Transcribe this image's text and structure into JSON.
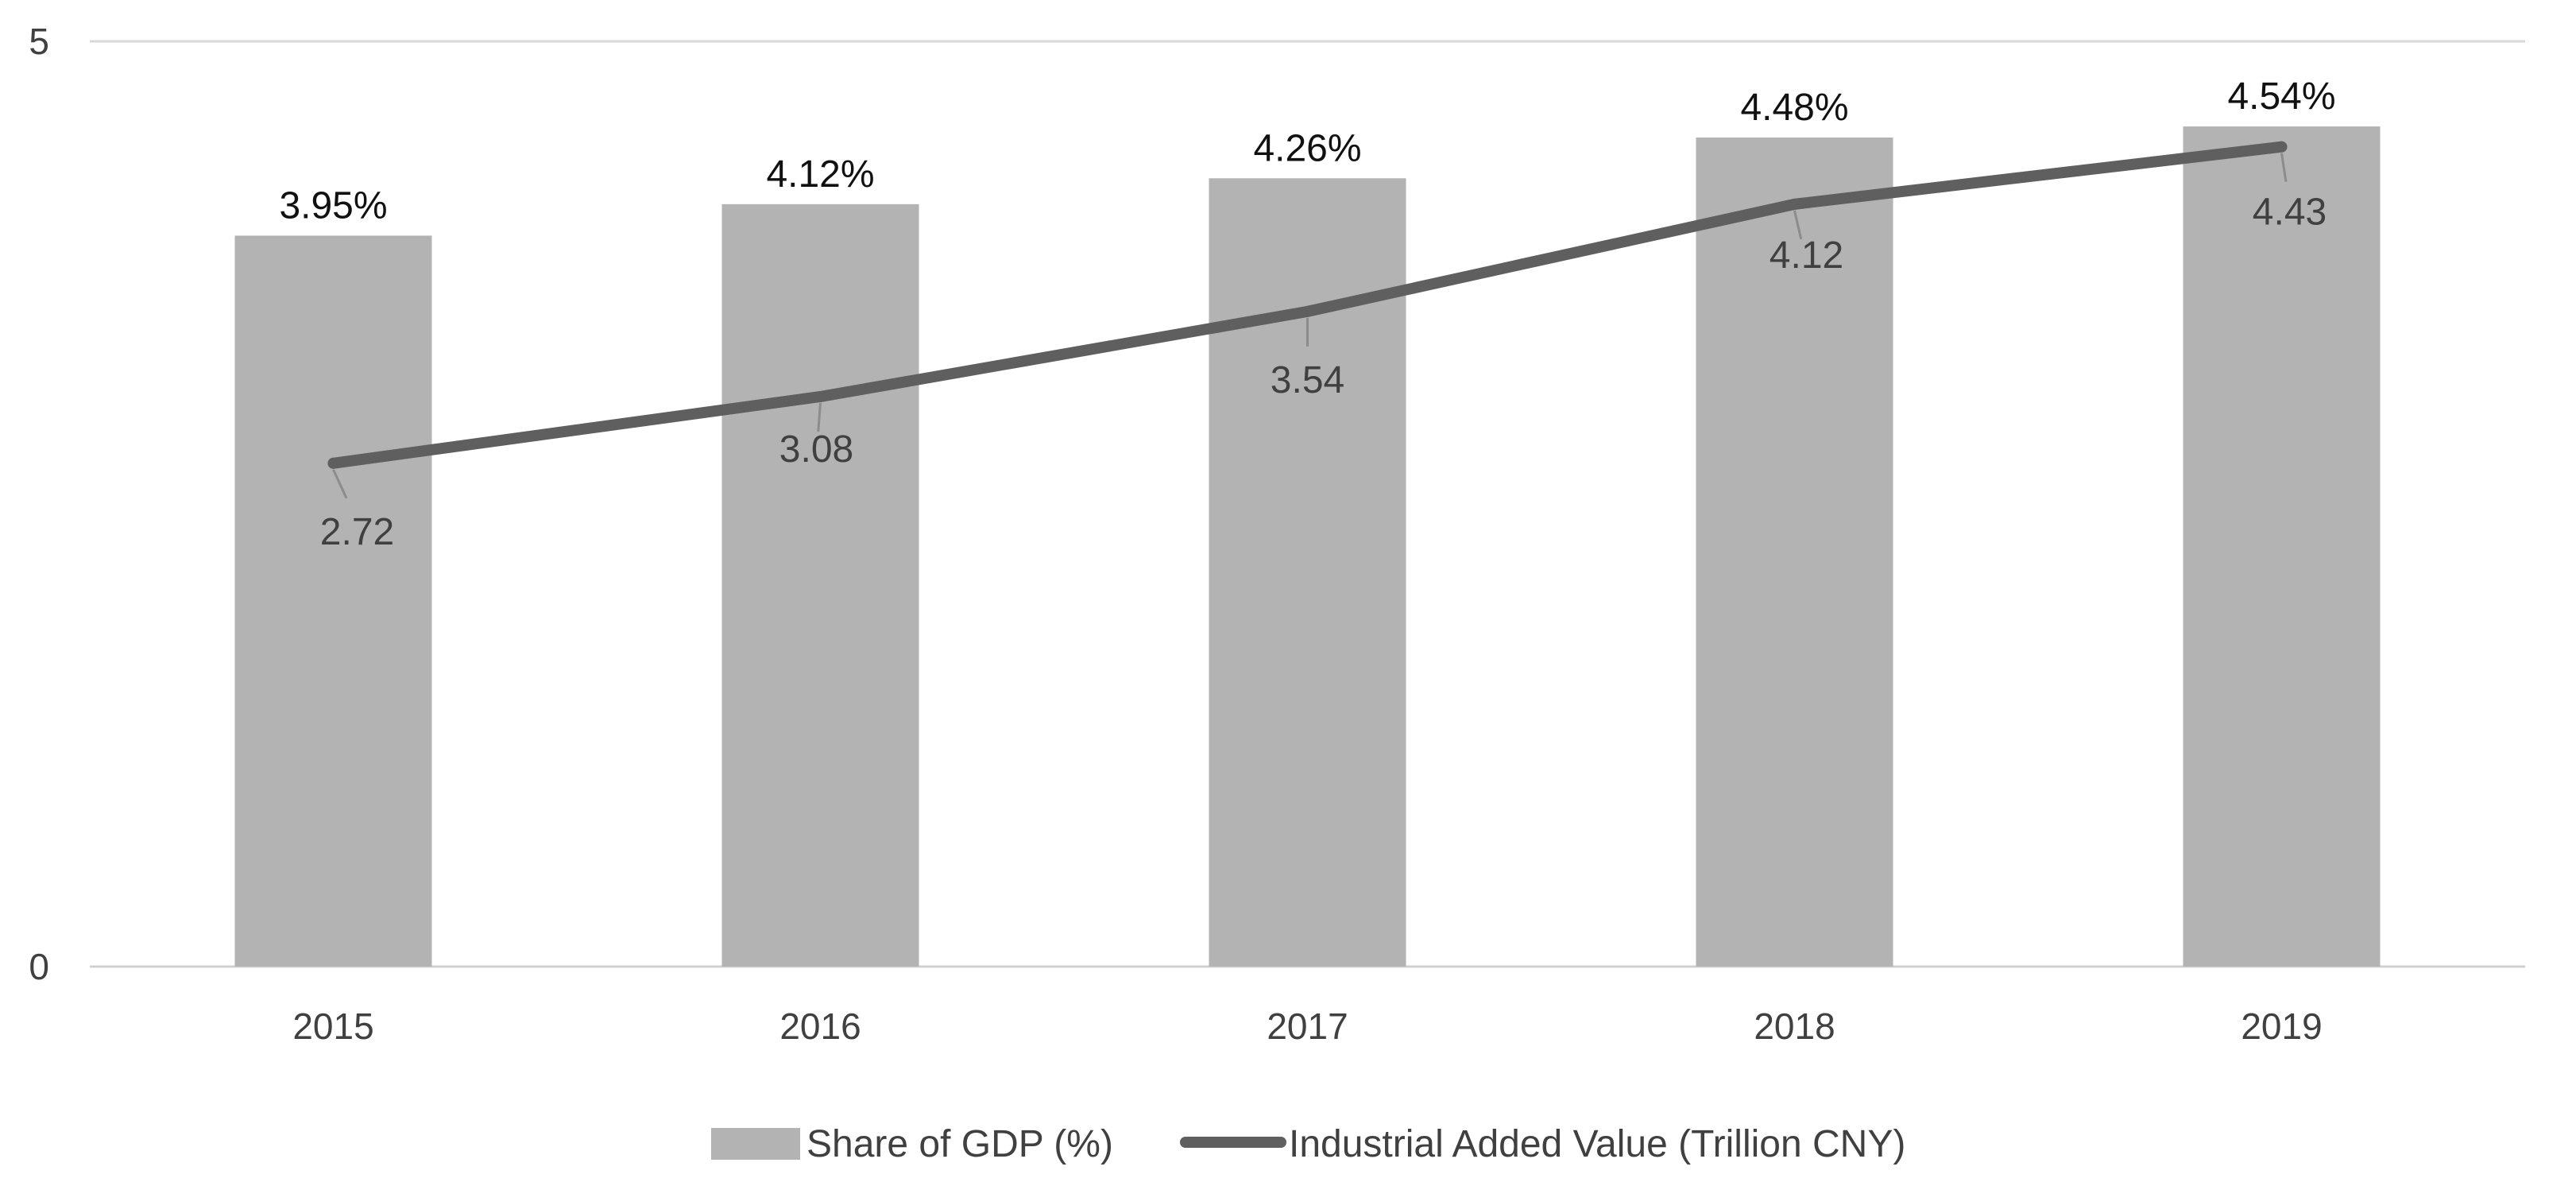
{
  "chart_data": {
    "type": "bar",
    "title": "",
    "xlabel": "",
    "ylabel": "",
    "ylim": [
      0,
      5
    ],
    "y_ticks": [
      "0",
      "5"
    ],
    "grid": true,
    "categories": [
      "2015",
      "2016",
      "2017",
      "2018",
      "2019"
    ],
    "series": [
      {
        "name": "Share of GDP (%)",
        "type": "bar",
        "values": [
          3.95,
          4.12,
          4.26,
          4.48,
          4.54
        ],
        "labels": [
          "3.95%",
          "4.12%",
          "4.26%",
          "4.48%",
          "4.54%"
        ],
        "color": "#b3b3b3"
      },
      {
        "name": "Industrial Added Value (Trillion CNY)",
        "type": "line",
        "values": [
          2.72,
          3.08,
          3.54,
          4.12,
          4.43
        ],
        "labels": [
          "2.72",
          "3.08",
          "3.54",
          "4.12",
          "4.43"
        ],
        "color": "#5f5f5f"
      }
    ],
    "legend_position": "bottom-center"
  }
}
